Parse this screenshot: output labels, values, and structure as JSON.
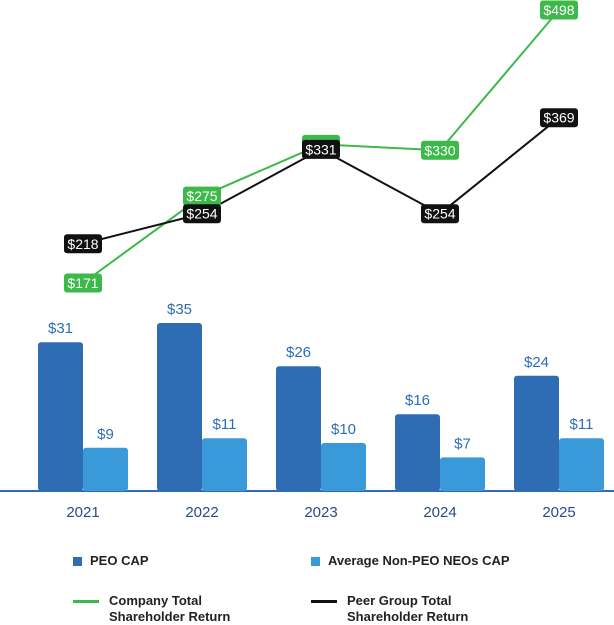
{
  "chart_data": {
    "type": "bar",
    "categories": [
      "2021",
      "2022",
      "2023",
      "2024",
      "2025"
    ],
    "series": [
      {
        "name": "PEO CAP",
        "values": [
          31,
          35,
          26,
          16,
          24
        ],
        "labels": [
          "$31",
          "$35",
          "$26",
          "$16",
          "$24"
        ],
        "color": "#2e6db4"
      },
      {
        "name": "Average Non-PEO NEOs CAP",
        "values": [
          9,
          11,
          10,
          7,
          11
        ],
        "labels": [
          "$9",
          "$11",
          "$10",
          "$7",
          "$11"
        ],
        "color": "#3a9ad9"
      }
    ],
    "lines": [
      {
        "name": "Company Total\nShareholder Return",
        "values": [
          171,
          275,
          337,
          330,
          498
        ],
        "labels": [
          "$171",
          "$275",
          "$337",
          "$330",
          "$498"
        ],
        "color": "#3cb94a"
      },
      {
        "name": "Peer Group Total\nShareholder Return",
        "values": [
          218,
          254,
          331,
          254,
          369
        ],
        "labels": [
          "$218",
          "$254",
          "$331",
          "$254",
          "$369"
        ],
        "color": "#111111"
      }
    ],
    "ylim_bars": [
      0,
      40
    ],
    "ylim_lines": [
      0,
      520
    ],
    "grid": false,
    "legend_position": "bottom"
  },
  "legend": {
    "peo_cap": "PEO CAP",
    "neo_cap": "Average Non-PEO NEOs CAP",
    "company_tsr": "Company Total\nShareholder Return",
    "peer_tsr": "Peer Group Total\nShareholder Return"
  },
  "colors": {
    "peo": "#2e6db4",
    "neo": "#3a9ad9",
    "company": "#3cb94a",
    "peer": "#111111",
    "axis": "#2e6db4"
  }
}
